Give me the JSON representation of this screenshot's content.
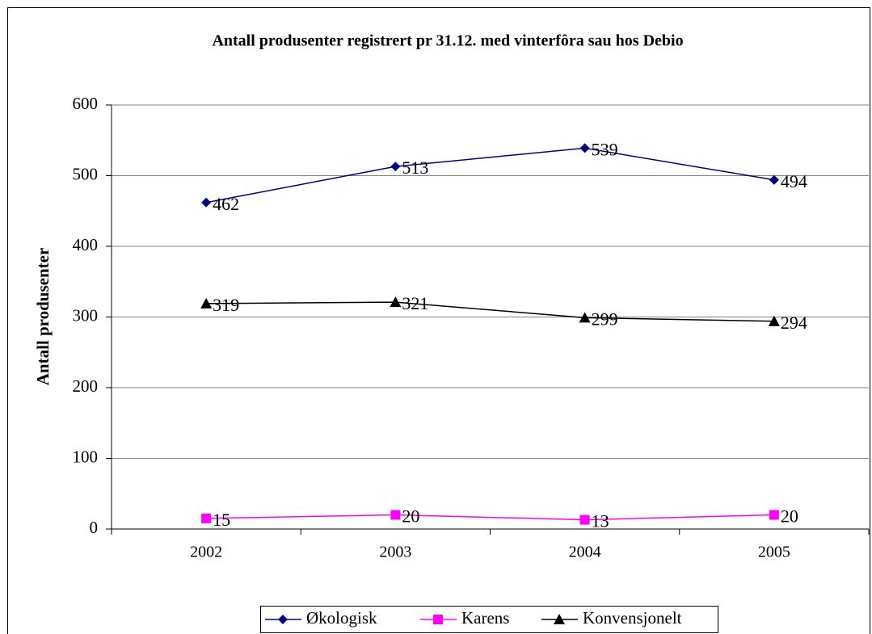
{
  "chart_data": {
    "type": "line",
    "title": "Antall produsenter registrert pr 31.12. med vinterfôra sau hos Debio",
    "y_label": "Antall produsenter",
    "categories": [
      "2002",
      "2003",
      "2004",
      "2005"
    ],
    "series": [
      {
        "name": "Økologisk",
        "color": "#000080",
        "marker": "diamond",
        "values": [
          462,
          513,
          539,
          494
        ]
      },
      {
        "name": "Karens",
        "color": "#ff00ff",
        "marker": "square",
        "values": [
          15,
          20,
          13,
          20
        ]
      },
      {
        "name": "Konvensjonelt",
        "color": "#000000",
        "marker": "triangle",
        "values": [
          319,
          321,
          299,
          294
        ]
      }
    ],
    "ylim": [
      0,
      600
    ],
    "yticks": [
      0,
      100,
      200,
      300,
      400,
      500,
      600
    ],
    "grid": true,
    "legend": "bottom"
  }
}
